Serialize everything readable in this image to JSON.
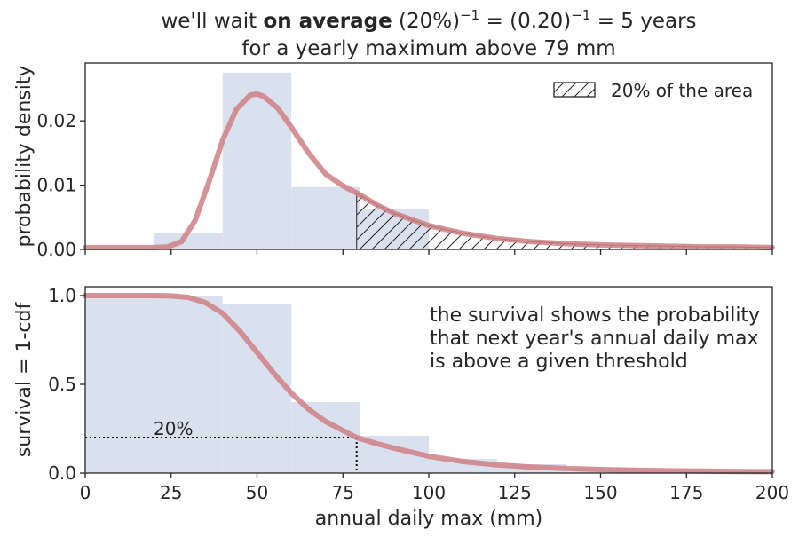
{
  "title": {
    "line1_pre": "we'll wait ",
    "line1_bold": "on average",
    "line1_a": " (20%)",
    "exp1": "−1",
    "line1_b": " = (0.20)",
    "exp2": "−1",
    "line1_c": " =  5 years",
    "line2": "for a yearly maximum above 79 mm"
  },
  "colors": {
    "hist": "#d9e0ee",
    "curve": "#cf8085",
    "axis": "#262626"
  },
  "chart_data": [
    {
      "type": "bar",
      "panel": "top",
      "ylabel": "probability density",
      "xlim": [
        0,
        200
      ],
      "ylim": [
        0,
        0.029
      ],
      "yticks": [
        0.0,
        0.01,
        0.02
      ],
      "yticklabels": [
        "0.00",
        "0.01",
        "0.02"
      ],
      "histogram": {
        "bin_edges": [
          20,
          40,
          60,
          80,
          100
        ],
        "values": [
          0.0025,
          0.0275,
          0.0097,
          0.0063
        ]
      },
      "curve": {
        "name": "pdf",
        "x": [
          0,
          10,
          20,
          24,
          28,
          32,
          36,
          40,
          44,
          48,
          50,
          52,
          56,
          60,
          65,
          70,
          75,
          79,
          85,
          90,
          100,
          110,
          120,
          130,
          140,
          150,
          160,
          170,
          180,
          190,
          200
        ],
        "y": [
          0.0003,
          0.0003,
          0.0003,
          0.0004,
          0.0012,
          0.0045,
          0.0105,
          0.017,
          0.0218,
          0.024,
          0.0242,
          0.0238,
          0.022,
          0.019,
          0.015,
          0.0117,
          0.0099,
          0.0088,
          0.0069,
          0.0056,
          0.0037,
          0.0025,
          0.0017,
          0.0012,
          0.0009,
          0.0007,
          0.0006,
          0.0005,
          0.0004,
          0.0004,
          0.0003
        ]
      },
      "shaded_region": {
        "x_from": 79,
        "x_to": 200,
        "legend": "20% of the area"
      },
      "legend_position": "top-right",
      "grid": false
    },
    {
      "type": "bar",
      "panel": "bottom",
      "xlabel": "annual daily max (mm)",
      "ylabel": "survival = 1-cdf",
      "xlim": [
        0,
        200
      ],
      "ylim": [
        0,
        1.05
      ],
      "xticks": [
        0,
        25,
        50,
        75,
        100,
        125,
        150,
        175,
        200
      ],
      "yticks": [
        0.0,
        0.5,
        1.0
      ],
      "yticklabels": [
        "0.0",
        "0.5",
        "1.0"
      ],
      "histogram": {
        "bin_edges": [
          0,
          20,
          40,
          60,
          80,
          100,
          120,
          140,
          160,
          180,
          200
        ],
        "values": [
          1.0,
          1.0,
          0.95,
          0.4,
          0.21,
          0.08,
          0.05,
          0.03,
          0.015,
          0.01
        ]
      },
      "curve": {
        "name": "survival",
        "x": [
          0,
          10,
          20,
          25,
          30,
          35,
          40,
          45,
          50,
          55,
          60,
          65,
          70,
          75,
          79,
          85,
          90,
          100,
          110,
          120,
          130,
          140,
          150,
          160,
          170,
          180,
          190,
          200
        ],
        "y": [
          1.0,
          1.0,
          1.0,
          0.998,
          0.99,
          0.96,
          0.9,
          0.8,
          0.68,
          0.56,
          0.45,
          0.36,
          0.29,
          0.24,
          0.2,
          0.165,
          0.14,
          0.095,
          0.065,
          0.046,
          0.034,
          0.026,
          0.02,
          0.016,
          0.013,
          0.011,
          0.009,
          0.008
        ]
      },
      "threshold": {
        "x": 79,
        "y": 0.2,
        "label": "20%"
      },
      "annotation": [
        "the survival shows the probability",
        "that next year's annual daily max",
        "is above a given threshold"
      ],
      "grid": false
    }
  ]
}
